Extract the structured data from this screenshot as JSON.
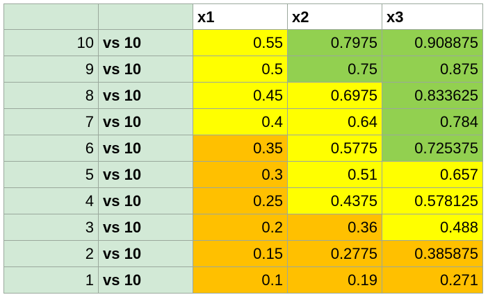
{
  "table": {
    "header": [
      "x1",
      "x2",
      "x3"
    ],
    "rows": [
      [
        10,
        "vs 10",
        0.55,
        0.7975,
        0.908875
      ],
      [
        9,
        "vs 10",
        0.5,
        0.75,
        0.875
      ],
      [
        8,
        "vs 10",
        0.45,
        0.6975,
        0.833625
      ],
      [
        7,
        "vs 10",
        0.4,
        0.64,
        0.784
      ],
      [
        6,
        "vs 10",
        0.35,
        0.5775,
        0.725375
      ],
      [
        5,
        "vs 10",
        0.3,
        0.51,
        0.657
      ],
      [
        4,
        "vs 10",
        0.25,
        0.4375,
        0.578125
      ],
      [
        3,
        "vs 10",
        0.2,
        0.36,
        0.488
      ],
      [
        2,
        "vs 10",
        0.15,
        0.2775,
        0.385875
      ],
      [
        1,
        "vs 10",
        0.1,
        0.19,
        0.271
      ]
    ],
    "fills": [
      [
        "#ffff00",
        "#92d050",
        "#92d050"
      ],
      [
        "#ffff00",
        "#92d050",
        "#92d050"
      ],
      [
        "#ffff00",
        "#ffff00",
        "#92d050"
      ],
      [
        "#ffff00",
        "#ffff00",
        "#92d050"
      ],
      [
        "#ffc000",
        "#ffff00",
        "#92d050"
      ],
      [
        "#ffc000",
        "#ffff00",
        "#ffff00"
      ],
      [
        "#ffc000",
        "#ffff00",
        "#ffff00"
      ],
      [
        "#ffc000",
        "#ffc000",
        "#ffff00"
      ],
      [
        "#ffc000",
        "#ffc000",
        "#ffc000"
      ],
      [
        "#ffc000",
        "#ffc000",
        "#ffc000"
      ]
    ]
  }
}
